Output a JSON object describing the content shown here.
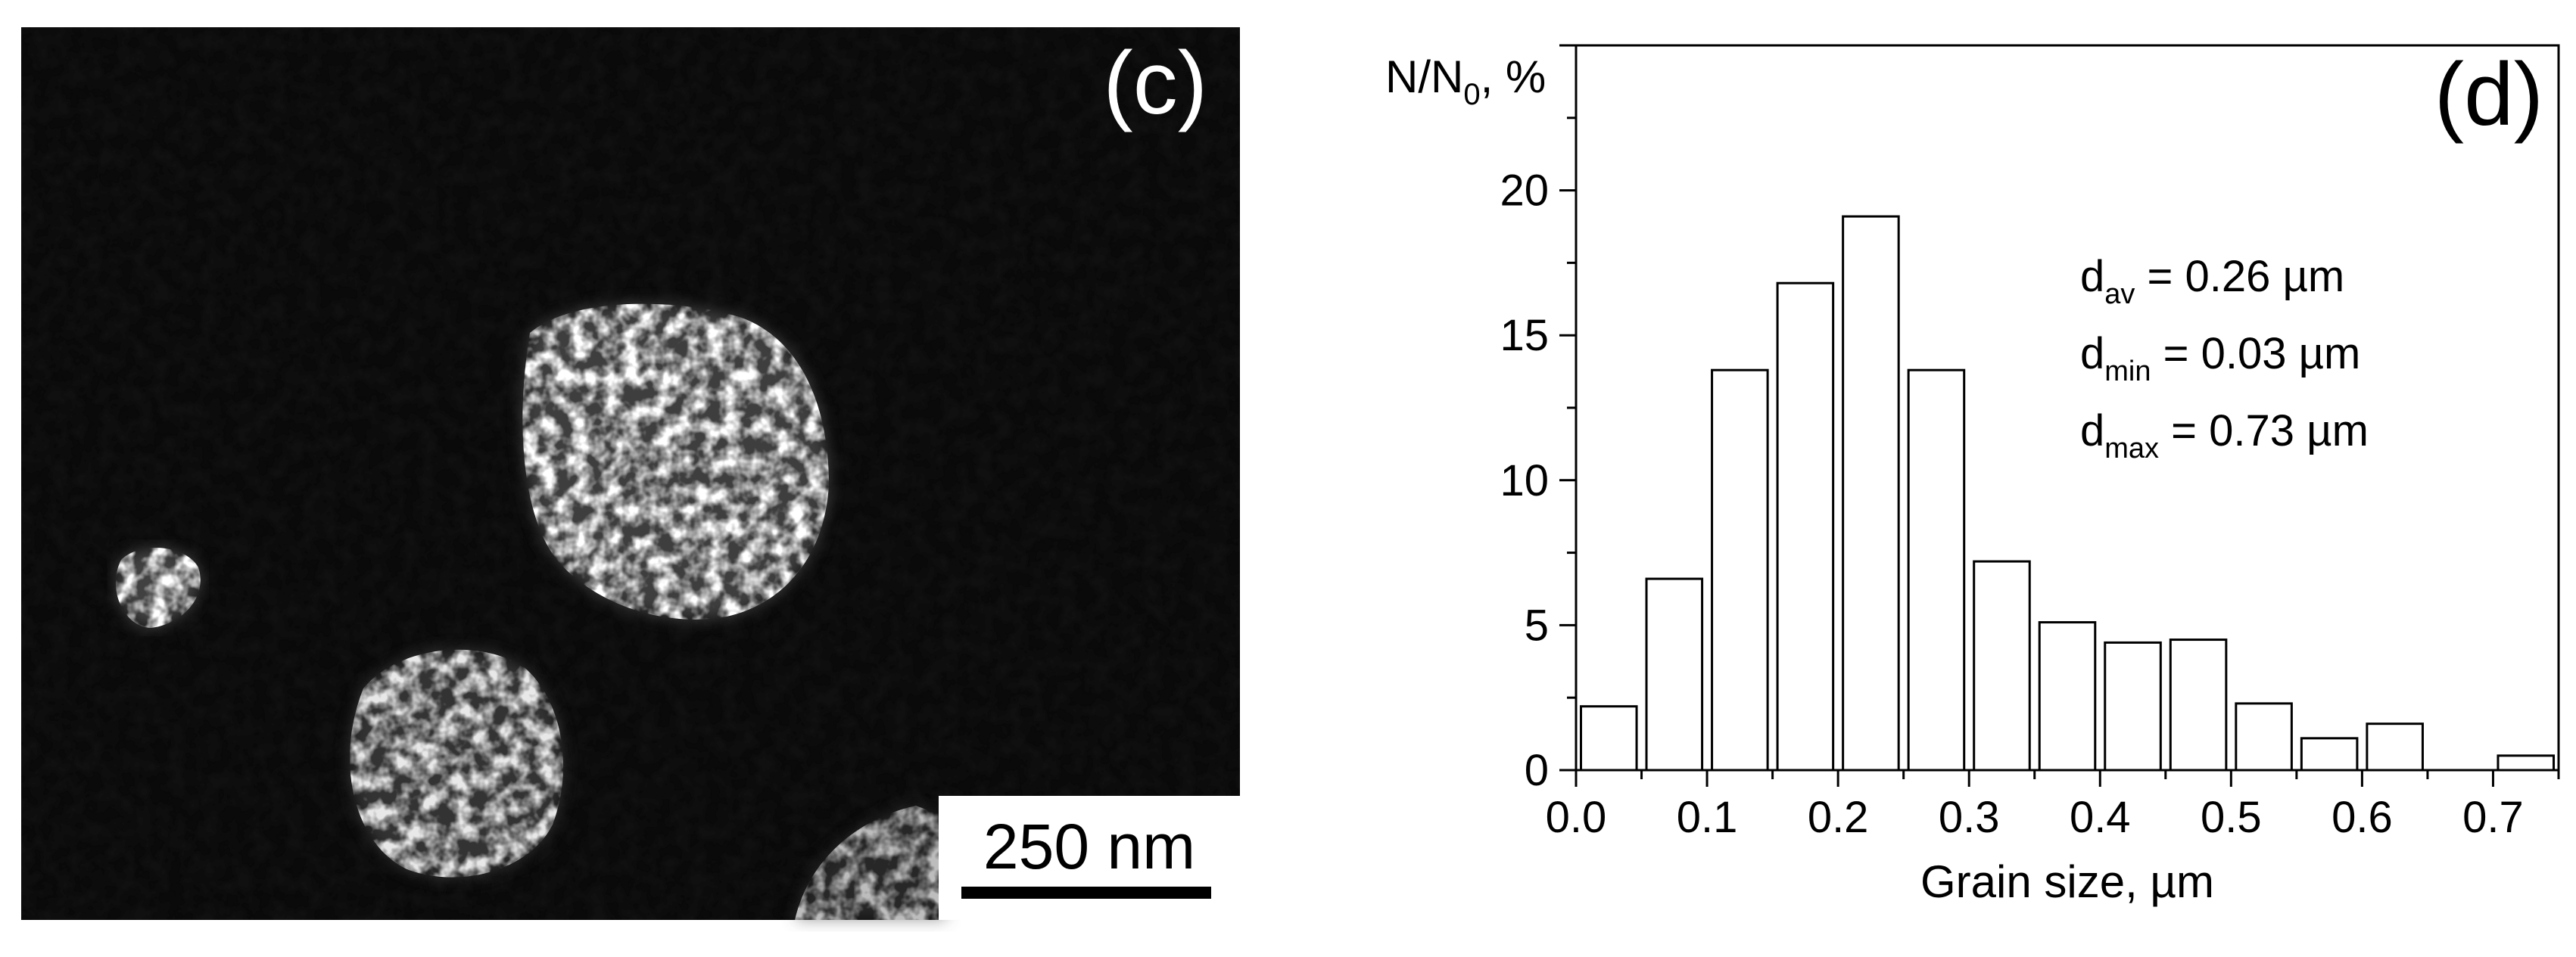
{
  "micrograph": {
    "panel_label": "(c)",
    "scale_bar_label": "250 nm",
    "background_color": "#0a0a0a",
    "grain_color": "#ffffff"
  },
  "chart_data": {
    "type": "bar",
    "panel_label": "(d)",
    "title": "",
    "xlabel": "Grain size, µm",
    "ylabel": "N/N",
    "ylabel_subscript": "0",
    "ylabel_suffix": ", %",
    "x_ticks": [
      "0.0",
      "0.1",
      "0.2",
      "0.3",
      "0.4",
      "0.5",
      "0.6",
      "0.7"
    ],
    "y_ticks": [
      "0",
      "5",
      "10",
      "15",
      "20"
    ],
    "xlim": [
      0.0,
      0.75
    ],
    "ylim": [
      0,
      25
    ],
    "bin_width": 0.05,
    "bar_width": 0.0425,
    "bins": [
      {
        "center": 0.025,
        "value": 2.2
      },
      {
        "center": 0.075,
        "value": 6.6
      },
      {
        "center": 0.125,
        "value": 13.8
      },
      {
        "center": 0.175,
        "value": 16.8
      },
      {
        "center": 0.225,
        "value": 19.1
      },
      {
        "center": 0.275,
        "value": 13.8
      },
      {
        "center": 0.325,
        "value": 7.2
      },
      {
        "center": 0.375,
        "value": 5.1
      },
      {
        "center": 0.425,
        "value": 4.4
      },
      {
        "center": 0.475,
        "value": 4.5
      },
      {
        "center": 0.525,
        "value": 2.3
      },
      {
        "center": 0.575,
        "value": 1.1
      },
      {
        "center": 0.625,
        "value": 1.6
      },
      {
        "center": 0.675,
        "value": 0.0
      },
      {
        "center": 0.725,
        "value": 0.5
      }
    ],
    "annotations": [
      {
        "base": "d",
        "sub": "av",
        "text": " = 0.26 µm"
      },
      {
        "base": "d",
        "sub": "min",
        "text": " = 0.03 µm"
      },
      {
        "base": "d",
        "sub": "max",
        "text": " = 0.73 µm"
      }
    ],
    "grid": false,
    "legend": "none",
    "bar_fill": "#ffffff",
    "bar_stroke": "#000000"
  }
}
